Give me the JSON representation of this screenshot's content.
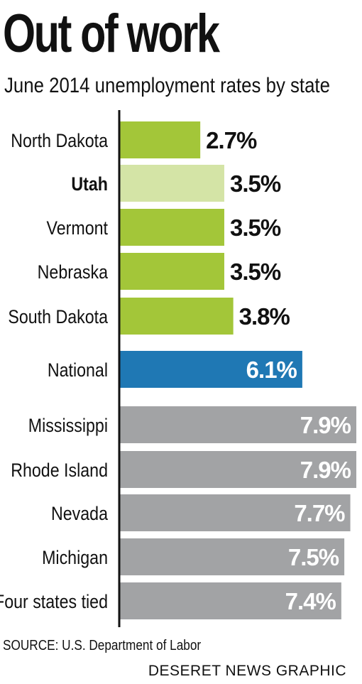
{
  "title": "Out of work",
  "subtitle": "June 2014 unemployment rates by state",
  "source": "SOURCE: U.S. Department of Labor",
  "credit": "DESERET NEWS GRAPHIC",
  "colors": {
    "top_states": "#a3c639",
    "highlight_state": "#d4e4a6",
    "national": "#1f78b4",
    "bottom_states": "#a2a3a5",
    "axis": "#111111",
    "label_dark": "#111111",
    "label_light": "#ffffff"
  },
  "chart_data": {
    "type": "bar",
    "orientation": "horizontal",
    "title": "Out of work",
    "subtitle": "June 2014 unemployment rates by state",
    "xlim": [
      0,
      7.9
    ],
    "grid": false,
    "legend": "none",
    "categories": [
      "North Dakota",
      "Utah",
      "Vermont",
      "Nebraska",
      "South Dakota",
      "National",
      "Mississippi",
      "Rhode Island",
      "Nevada",
      "Michigan",
      "Four states tied"
    ],
    "values": [
      2.7,
      3.5,
      3.5,
      3.5,
      3.8,
      6.1,
      7.9,
      7.9,
      7.7,
      7.5,
      7.4
    ],
    "value_labels": [
      "2.7%",
      "3.5%",
      "3.5%",
      "3.5%",
      "3.8%",
      "6.1%",
      "7.9%",
      "7.9%",
      "7.7%",
      "7.5%",
      "7.4%"
    ],
    "groups": [
      "top_states",
      "highlight_state",
      "top_states",
      "top_states",
      "top_states",
      "national",
      "bottom_states",
      "bottom_states",
      "bottom_states",
      "bottom_states",
      "bottom_states"
    ],
    "bold_labels": [
      false,
      true,
      false,
      false,
      false,
      false,
      false,
      false,
      false,
      false,
      false
    ]
  }
}
